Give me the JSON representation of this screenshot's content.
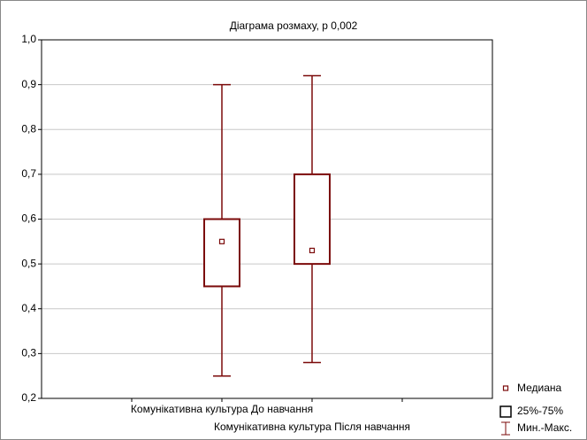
{
  "chart_data": {
    "type": "box",
    "title": "Діаграма розмаху, p 0,002",
    "categories": [
      "Комунікативна культура До навчання",
      "Комунікативна культура Після навчання"
    ],
    "boxes": [
      {
        "min": 0.25,
        "q1": 0.45,
        "median": 0.55,
        "q3": 0.6,
        "max": 0.9
      },
      {
        "min": 0.28,
        "q1": 0.5,
        "median": 0.53,
        "q3": 0.7,
        "max": 0.92
      }
    ],
    "color": "#7b0a0a",
    "ylim": [
      0.2,
      1.0
    ],
    "yticks": [
      {
        "value": 0.2,
        "label": "0,2"
      },
      {
        "value": 0.3,
        "label": "0,3"
      },
      {
        "value": 0.4,
        "label": "0,4"
      },
      {
        "value": 0.5,
        "label": "0,5"
      },
      {
        "value": 0.6,
        "label": "0,6"
      },
      {
        "value": 0.7,
        "label": "0,7"
      },
      {
        "value": 0.8,
        "label": "0,8"
      },
      {
        "value": 0.9,
        "label": "0,9"
      },
      {
        "value": 1.0,
        "label": "1,0"
      }
    ],
    "grid": true,
    "legend": [
      "Медиана",
      "25%-75%",
      "Мин.-Макс."
    ]
  }
}
